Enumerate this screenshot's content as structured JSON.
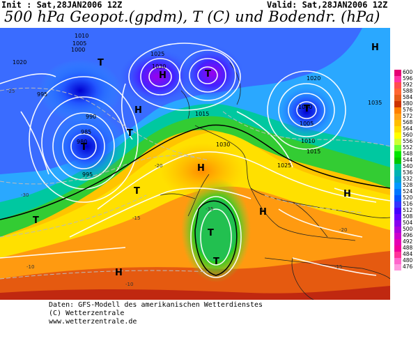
{
  "header": {
    "init": "Init : Sat,28JAN2006 12Z",
    "valid": "Valid: Sat,28JAN2006 12Z",
    "title": "500 hPa Geopot.(gpdm), T (C) und Bodendr. (hPa)"
  },
  "map_labels": {
    "pressure": [
      "1010",
      "1005",
      "1000",
      "1020",
      "1025",
      "1030",
      "995",
      "990",
      "985",
      "980",
      "1015",
      "1030",
      "1025",
      "1020",
      "1015",
      "1010",
      "1005",
      "1000",
      "995",
      "1035"
    ],
    "centers": [
      "H",
      "T"
    ],
    "temps": [
      "-25",
      "-30",
      "-35",
      "-20",
      "-15",
      "-10",
      "-5"
    ]
  },
  "colorbar": {
    "ticks": [
      "600",
      "596",
      "592",
      "588",
      "584",
      "580",
      "576",
      "572",
      "568",
      "564",
      "560",
      "556",
      "552",
      "548",
      "544",
      "540",
      "536",
      "532",
      "528",
      "524",
      "520",
      "516",
      "512",
      "508",
      "504",
      "500",
      "496",
      "492",
      "488",
      "484",
      "480",
      "476"
    ],
    "colors": [
      "#e60073",
      "#ff33a6",
      "#ff4d4d",
      "#ff6633",
      "#e65c1a",
      "#cc3300",
      "#ff8000",
      "#ffa31a",
      "#ffbf00",
      "#ffdd00",
      "#ffff00",
      "#ccff33",
      "#66ff33",
      "#00e600",
      "#00c800",
      "#00cc88",
      "#00b3b3",
      "#00a3cc",
      "#0099ff",
      "#0077ff",
      "#0055ff",
      "#3333ff",
      "#4400ff",
      "#6600ff",
      "#8800ee",
      "#aa00dd",
      "#cc00cc",
      "#e600b3",
      "#f2009a",
      "#ff3399",
      "#ff66cc",
      "#ff99dd"
    ]
  },
  "footer": {
    "line1": "Daten: GFS-Modell des amerikanischen Wetterdienstes",
    "line2": "(C) Wetterzentrale",
    "line3": "www.wetterzentrale.de"
  }
}
